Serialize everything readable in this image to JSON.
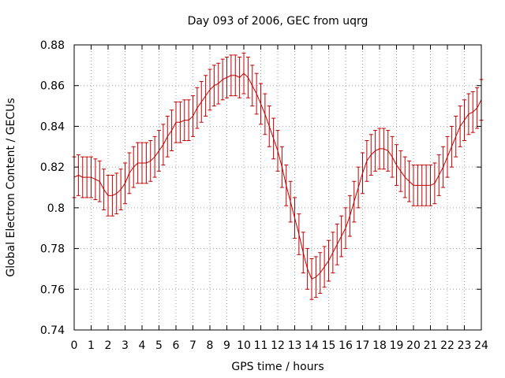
{
  "chart_data": {
    "type": "line",
    "title": "Day 093 of 2006, GEC from uqrg",
    "xlabel": "GPS time / hours",
    "ylabel": "Global Electron Content / GECUs",
    "xlim": [
      0,
      24
    ],
    "ylim": [
      0.74,
      0.88
    ],
    "grid": true,
    "series_color": "#c00000",
    "grid_color": "#a0a0a0",
    "x_ticks": [
      0,
      1,
      2,
      3,
      4,
      5,
      6,
      7,
      8,
      9,
      10,
      11,
      12,
      13,
      14,
      15,
      16,
      17,
      18,
      19,
      20,
      21,
      22,
      23,
      24
    ],
    "x_tick_labels": [
      "0",
      "1",
      "2",
      "3",
      "4",
      "5",
      "6",
      "7",
      "8",
      "9",
      "10",
      "11",
      "12",
      "13",
      "14",
      "15",
      "16",
      "17",
      "18",
      "19",
      "20",
      "21",
      "22",
      "23",
      "24"
    ],
    "y_ticks": [
      0.74,
      0.76,
      0.78,
      0.8,
      0.82,
      0.84,
      0.86,
      0.88
    ],
    "y_tick_labels": [
      "0.74",
      "0.76",
      "0.78",
      "0.8",
      "0.82",
      "0.84",
      "0.86",
      "0.88"
    ],
    "error": 0.01,
    "series": [
      {
        "name": "GEC",
        "x": [
          0,
          0.25,
          0.5,
          0.75,
          1,
          1.25,
          1.5,
          1.75,
          2,
          2.25,
          2.5,
          2.75,
          3,
          3.25,
          3.5,
          3.75,
          4,
          4.25,
          4.5,
          4.75,
          5,
          5.25,
          5.5,
          5.75,
          6,
          6.25,
          6.5,
          6.75,
          7,
          7.25,
          7.5,
          7.75,
          8,
          8.25,
          8.5,
          8.75,
          9,
          9.25,
          9.5,
          9.75,
          10,
          10.25,
          10.5,
          10.75,
          11,
          11.25,
          11.5,
          11.75,
          12,
          12.25,
          12.5,
          12.75,
          13,
          13.25,
          13.5,
          13.75,
          14,
          14.25,
          14.5,
          14.75,
          15,
          15.25,
          15.5,
          15.75,
          16,
          16.25,
          16.5,
          16.75,
          17,
          17.25,
          17.5,
          17.75,
          18,
          18.25,
          18.5,
          18.75,
          19,
          19.25,
          19.5,
          19.75,
          20,
          20.25,
          20.5,
          20.75,
          21,
          21.25,
          21.5,
          21.75,
          22,
          22.25,
          22.5,
          22.75,
          23,
          23.25,
          23.5,
          23.75,
          24
        ],
        "values": [
          0.815,
          0.816,
          0.815,
          0.815,
          0.815,
          0.814,
          0.813,
          0.809,
          0.806,
          0.806,
          0.807,
          0.809,
          0.812,
          0.817,
          0.82,
          0.822,
          0.822,
          0.822,
          0.823,
          0.825,
          0.828,
          0.831,
          0.835,
          0.838,
          0.842,
          0.842,
          0.843,
          0.843,
          0.845,
          0.849,
          0.852,
          0.855,
          0.858,
          0.86,
          0.861,
          0.863,
          0.864,
          0.865,
          0.865,
          0.864,
          0.866,
          0.864,
          0.86,
          0.856,
          0.851,
          0.846,
          0.84,
          0.834,
          0.828,
          0.82,
          0.811,
          0.803,
          0.795,
          0.787,
          0.778,
          0.77,
          0.765,
          0.766,
          0.768,
          0.771,
          0.774,
          0.778,
          0.782,
          0.786,
          0.79,
          0.796,
          0.803,
          0.81,
          0.817,
          0.823,
          0.826,
          0.828,
          0.829,
          0.829,
          0.828,
          0.825,
          0.821,
          0.818,
          0.815,
          0.813,
          0.811,
          0.811,
          0.811,
          0.811,
          0.811,
          0.812,
          0.816,
          0.82,
          0.825,
          0.83,
          0.835,
          0.84,
          0.843,
          0.846,
          0.847,
          0.849,
          0.853
        ]
      }
    ]
  }
}
